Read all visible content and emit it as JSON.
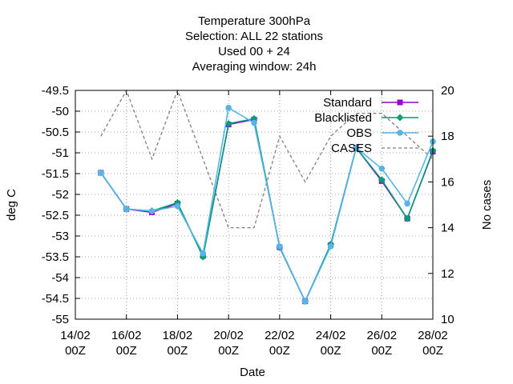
{
  "chart_data": {
    "type": "line",
    "title_lines": [
      "Temperature 300hPa",
      "Selection: ALL     22 stations",
      "Used  00  + 24",
      "Averaging window: 24h"
    ],
    "xlabel": "Date",
    "ylabel": "deg C",
    "y2label": "No cases",
    "x_ticks": [
      {
        "day": 14,
        "line1": "14/02",
        "line2": "00Z"
      },
      {
        "day": 16,
        "line1": "16/02",
        "line2": "00Z"
      },
      {
        "day": 18,
        "line1": "18/02",
        "line2": "00Z"
      },
      {
        "day": 20,
        "line1": "20/02",
        "line2": "00Z"
      },
      {
        "day": 22,
        "line1": "22/02",
        "line2": "00Z"
      },
      {
        "day": 24,
        "line1": "24/02",
        "line2": "00Z"
      },
      {
        "day": 26,
        "line1": "26/02",
        "line2": "00Z"
      },
      {
        "day": 28,
        "line1": "28/02",
        "line2": "00Z"
      }
    ],
    "xlim": [
      14,
      28
    ],
    "ylim": [
      -55,
      -49.5
    ],
    "y_ticks": [
      "-49.5",
      "-50",
      "-50.5",
      "-51",
      "-51.5",
      "-52",
      "-52.5",
      "-53",
      "-53.5",
      "-54",
      "-54.5",
      "-55"
    ],
    "y2lim": [
      10,
      20
    ],
    "y2_ticks": [
      "10",
      "12",
      "14",
      "16",
      "18",
      "20"
    ],
    "grid": true,
    "legend_position": "top-right",
    "x": [
      15,
      16,
      17,
      18,
      19,
      20,
      21,
      22,
      23,
      24,
      25,
      26,
      27,
      28
    ],
    "series": [
      {
        "name": "Standard",
        "axis": "y1",
        "color": "#9400d3",
        "marker": "square",
        "dash": false,
        "values": [
          -51.48,
          -52.35,
          -52.43,
          -52.22,
          -53.48,
          -50.32,
          -50.2,
          -53.27,
          -54.57,
          -53.22,
          -50.88,
          -51.68,
          -52.58,
          -50.97
        ]
      },
      {
        "name": "Blacklisted",
        "axis": "y1",
        "color": "#009e73",
        "marker": "diamond",
        "dash": false,
        "values": [
          -51.48,
          -52.35,
          -52.4,
          -52.2,
          -53.5,
          -50.3,
          -50.18,
          -53.27,
          -54.57,
          -53.2,
          -50.88,
          -51.65,
          -52.58,
          -50.95
        ]
      },
      {
        "name": "OBS",
        "axis": "y1",
        "color": "#56b4e9",
        "marker": "circle",
        "dash": false,
        "values": [
          -51.48,
          -52.35,
          -52.4,
          -52.28,
          -53.42,
          -49.92,
          -50.28,
          -53.25,
          -54.57,
          -53.25,
          -50.88,
          -51.38,
          -52.22,
          -50.73
        ]
      },
      {
        "name": "CASES",
        "axis": "y2",
        "color": "#808080",
        "marker": "none",
        "dash": true,
        "values": [
          18,
          20,
          17,
          20,
          17,
          14,
          14,
          18,
          16,
          18,
          19,
          19,
          18,
          17
        ]
      }
    ]
  }
}
